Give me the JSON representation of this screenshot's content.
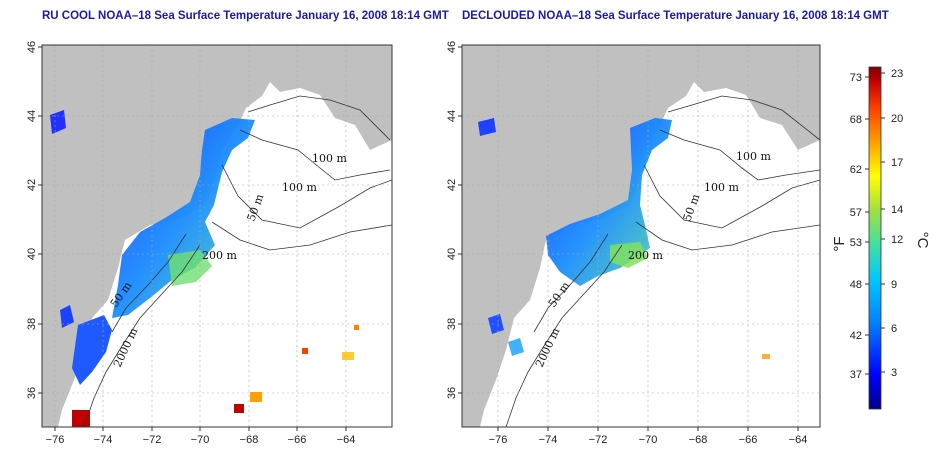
{
  "panels": [
    {
      "id": "left",
      "title": "RU COOL NOAA–18 Sea Surface Temperature January 16, 2008 18:14 GMT",
      "contour_labels": [
        "100 m",
        "100 m",
        "50 m",
        "200 m",
        "50 m",
        "2000 m"
      ]
    },
    {
      "id": "right",
      "title": "DECLOUDED NOAA–18 Sea Surface Temperature January 16, 2008 18:14 GMT",
      "contour_labels": [
        "100 m",
        "100 m",
        "50 m",
        "200 m",
        "50 m",
        "2000 m"
      ]
    }
  ],
  "axes": {
    "lon_ticks": [
      "−76",
      "−74",
      "−72",
      "−70",
      "−68",
      "−66",
      "−64"
    ],
    "lat_ticks": [
      "36",
      "38",
      "40",
      "42",
      "44",
      "46"
    ],
    "lon_range": [
      -77,
      -63
    ],
    "lat_range": [
      35,
      46
    ]
  },
  "colorbar": {
    "fahrenheit_unit": "°F",
    "celsius_unit": "°C",
    "fahrenheit_ticks": [
      "37",
      "42",
      "48",
      "53",
      "57",
      "62",
      "68",
      "73"
    ],
    "celsius_ticks": [
      "3",
      "6",
      "9",
      "12",
      "14",
      "17",
      "20",
      "23"
    ],
    "colors": [
      "#00008b",
      "#0000ff",
      "#0080ff",
      "#00c8ff",
      "#40e0a0",
      "#a0e040",
      "#ffff00",
      "#ffa000",
      "#ff4000",
      "#c00000",
      "#800000"
    ]
  },
  "colors": {
    "land": "#c0c0c0",
    "title": "#1a1aa8",
    "grid": "#aaaaaa"
  }
}
